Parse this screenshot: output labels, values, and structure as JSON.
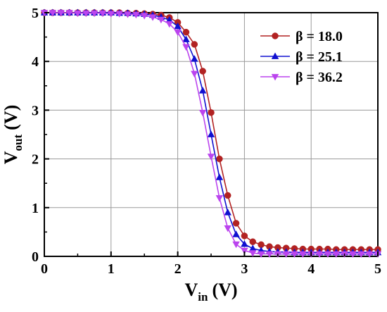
{
  "chart_data": {
    "type": "line",
    "title": "",
    "xlabel": {
      "main": "V",
      "sub": "in",
      "unit": "(V)"
    },
    "ylabel": {
      "main": "V",
      "sub": "out",
      "unit": "(V)"
    },
    "xlim": [
      0,
      5
    ],
    "ylim": [
      0,
      5
    ],
    "xticks": [
      "0",
      "1",
      "2",
      "3",
      "4",
      "5"
    ],
    "yticks": [
      "0",
      "1",
      "2",
      "3",
      "4",
      "5"
    ],
    "grid": true,
    "legend_position": "top-right",
    "x": [
      0,
      0.125,
      0.25,
      0.375,
      0.5,
      0.625,
      0.75,
      0.875,
      1.0,
      1.125,
      1.25,
      1.375,
      1.5,
      1.625,
      1.75,
      1.875,
      2.0,
      2.125,
      2.25,
      2.375,
      2.5,
      2.625,
      2.75,
      2.875,
      3.0,
      3.125,
      3.25,
      3.375,
      3.5,
      3.625,
      3.75,
      3.875,
      4.0,
      4.125,
      4.25,
      4.375,
      4.5,
      4.625,
      4.75,
      4.875,
      5.0
    ],
    "series": [
      {
        "name": "β = 18.0",
        "color": "#b22222",
        "marker": "circle",
        "values": [
          5.0,
          5.0,
          5.0,
          5.0,
          5.0,
          5.0,
          5.0,
          5.0,
          5.0,
          5.0,
          4.99,
          4.99,
          4.98,
          4.97,
          4.95,
          4.9,
          4.8,
          4.6,
          4.35,
          3.8,
          2.95,
          2.0,
          1.25,
          0.68,
          0.42,
          0.3,
          0.24,
          0.2,
          0.18,
          0.17,
          0.16,
          0.15,
          0.15,
          0.15,
          0.15,
          0.14,
          0.14,
          0.14,
          0.14,
          0.14,
          0.14
        ]
      },
      {
        "name": "β = 25.1",
        "color": "#1010d0",
        "marker": "triangle-up",
        "values": [
          5.0,
          5.0,
          5.0,
          5.0,
          5.0,
          5.0,
          5.0,
          5.0,
          5.0,
          4.99,
          4.99,
          4.98,
          4.97,
          4.95,
          4.91,
          4.85,
          4.72,
          4.45,
          4.05,
          3.4,
          2.5,
          1.62,
          0.9,
          0.45,
          0.25,
          0.16,
          0.12,
          0.1,
          0.09,
          0.09,
          0.08,
          0.08,
          0.08,
          0.08,
          0.08,
          0.08,
          0.08,
          0.08,
          0.08,
          0.08,
          0.08
        ]
      },
      {
        "name": "β = 36.2",
        "color": "#bb44ee",
        "marker": "triangle-down",
        "values": [
          5.0,
          5.0,
          5.0,
          5.0,
          4.99,
          4.99,
          4.99,
          4.99,
          4.98,
          4.98,
          4.97,
          4.96,
          4.94,
          4.91,
          4.86,
          4.77,
          4.6,
          4.3,
          3.75,
          2.95,
          2.05,
          1.2,
          0.58,
          0.25,
          0.12,
          0.07,
          0.05,
          0.05,
          0.05,
          0.05,
          0.05,
          0.05,
          0.05,
          0.05,
          0.05,
          0.05,
          0.05,
          0.05,
          0.05,
          0.05,
          0.05
        ]
      }
    ]
  }
}
